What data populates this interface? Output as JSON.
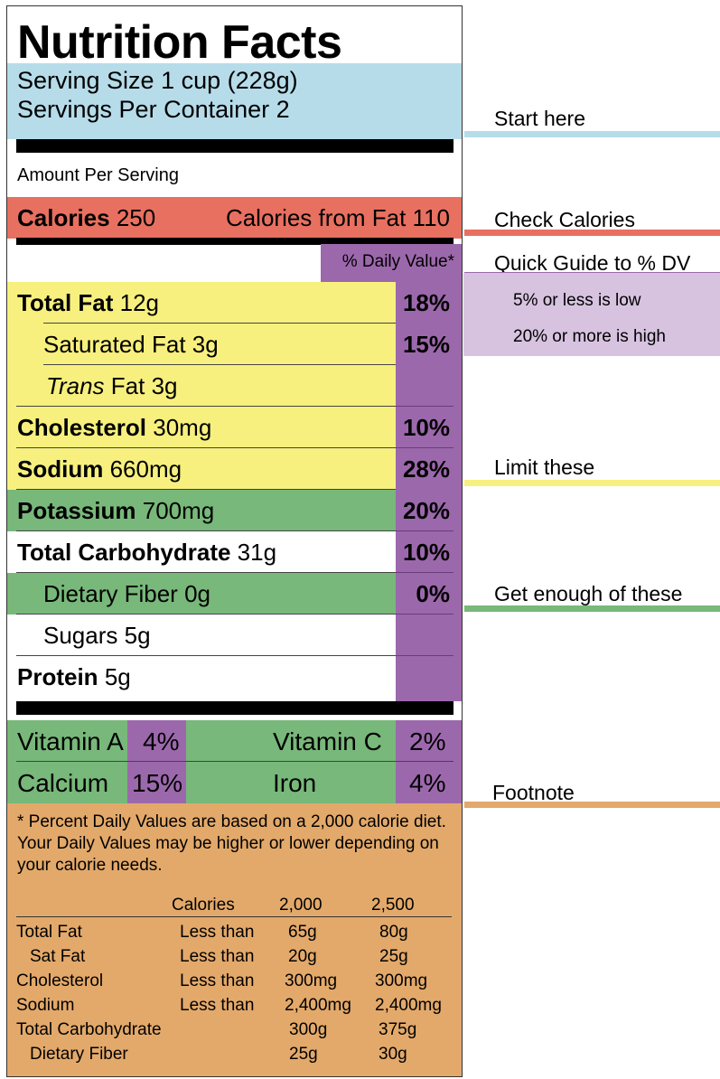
{
  "label": {
    "title": "Nutrition Facts",
    "serving_size": "Serving Size 1 cup (228g)",
    "servings_per_container": "Servings Per Container 2",
    "amount_per_serving": "Amount Per Serving",
    "calories_label": "Calories",
    "calories_value": "250",
    "calories_from_fat": "Calories from Fat 110",
    "dv_header": "% Daily Value*",
    "rows": [
      {
        "name": "Total Fat",
        "amount": "12g",
        "dv": "18%"
      },
      {
        "name": "Saturated Fat",
        "amount": "3g",
        "dv": "15%"
      },
      {
        "name": "Trans",
        "name_rest": "Fat",
        "amount": "3g",
        "dv": ""
      },
      {
        "name": "Cholesterol",
        "amount": "30mg",
        "dv": "10%"
      },
      {
        "name": "Sodium",
        "amount": "660mg",
        "dv": "28%"
      },
      {
        "name": "Potassium",
        "amount": "700mg",
        "dv": "20%"
      },
      {
        "name": "Total Carbohydrate",
        "amount": "31g",
        "dv": "10%"
      },
      {
        "name": "Dietary Fiber",
        "amount": "0g",
        "dv": "0%"
      },
      {
        "name": "Sugars",
        "amount": "5g",
        "dv": ""
      },
      {
        "name": "Protein",
        "amount": "5g",
        "dv": ""
      }
    ],
    "vitamins": [
      {
        "left_name": "Vitamin A",
        "left_pct": "4%",
        "right_name": "Vitamin C",
        "right_pct": "2%"
      },
      {
        "left_name": "Calcium",
        "left_pct": "15%",
        "right_name": "Iron",
        "right_pct": "4%"
      }
    ],
    "footnote": {
      "text": "* Percent Daily Values are based on a 2,000 calorie diet. Your Daily Values may be higher or lower depending on your calorie needs.",
      "header": {
        "label": "Calories",
        "col1": "2,000",
        "col2": "2,500"
      },
      "rows": [
        {
          "nutrient": "Total Fat",
          "qualifier": "Less than",
          "v1": "65g",
          "v2": "80g"
        },
        {
          "nutrient": "Sat Fat",
          "qualifier": "Less than",
          "v1": "20g",
          "v2": "25g"
        },
        {
          "nutrient": "Cholesterol",
          "qualifier": "Less than",
          "v1": "300mg",
          "v2": "300mg"
        },
        {
          "nutrient": "Sodium",
          "qualifier": "Less than",
          "v1": "2,400mg",
          "v2": "2,400mg"
        },
        {
          "nutrient": "Total Carbohydrate",
          "qualifier": "",
          "v1": "300g",
          "v2": "375g"
        },
        {
          "nutrient": "Dietary Fiber",
          "qualifier": "",
          "v1": "25g",
          "v2": "30g"
        }
      ]
    }
  },
  "guide": {
    "start_here": "Start here",
    "check_calories": "Check Calories",
    "quick_guide": "Quick Guide to % DV",
    "low": "5% or less is low",
    "high": "20% or more is high",
    "limit_these": "Limit these",
    "get_enough": "Get enough of these",
    "footnote": "Footnote"
  },
  "colors": {
    "serving_blue": "#b6dcea",
    "calories_red": "#e87060",
    "dv_purple": "#9c68ac",
    "limit_yellow": "#f7f07e",
    "enough_green": "#78b87a",
    "footnote_orange": "#e3a96a",
    "guide_lavender": "#d7c3e0"
  }
}
